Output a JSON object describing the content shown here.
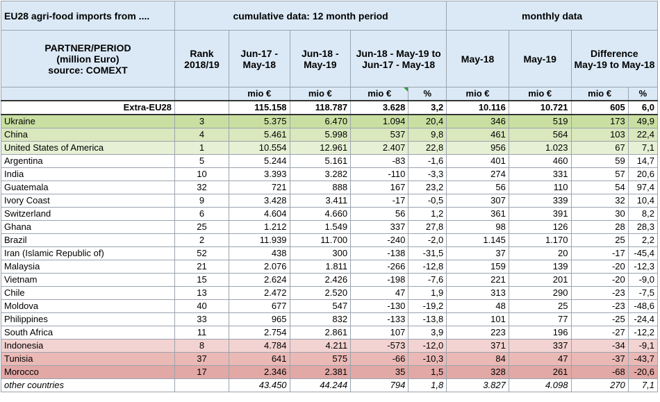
{
  "header": {
    "title": "EU28 agri-food imports from ....",
    "cumulative": "cumulative data: 12 month period",
    "monthly": "monthly data",
    "partner_line1": "PARTNER/PERIOD",
    "partner_line2": "(million Euro)",
    "partner_line3": "source: COMEXT",
    "rank_line1": "Rank",
    "rank_line2": "2018/19",
    "c1_line1": "Jun-17 -",
    "c1_line2": "May-18",
    "c2_line1": "Jun-18 -",
    "c2_line2": "May-19",
    "c3_line1": "Jun-18 - May-19 to",
    "c3_line2": "Jun-17 - May-18",
    "m1": "May-18",
    "m2": "May-19",
    "diff_line1": "Difference",
    "diff_line2": "May-19 to May-18"
  },
  "units": {
    "u1": "mio €",
    "u2": "mio €",
    "u3": "mio €",
    "u4": "%",
    "u5": "mio €",
    "u6": "mio €",
    "u7": "mio €",
    "u8": "%"
  },
  "extra": {
    "name": "Extra-EU28",
    "v1": "115.158",
    "v2": "118.787",
    "v3": "3.628",
    "v4": "3,2",
    "v5": "10.116",
    "v6": "10.721",
    "v7": "605",
    "v8": "6,0"
  },
  "rows": [
    {
      "name": "Ukraine",
      "rank": "3",
      "v1": "5.375",
      "v2": "6.470",
      "v3": "1.094",
      "v4": "20,4",
      "v5": "346",
      "v6": "519",
      "v7": "173",
      "v8": "49,9"
    },
    {
      "name": "China",
      "rank": "4",
      "v1": "5.461",
      "v2": "5.998",
      "v3": "537",
      "v4": "9,8",
      "v5": "461",
      "v6": "564",
      "v7": "103",
      "v8": "22,4"
    },
    {
      "name": "United States of America",
      "rank": "1",
      "v1": "10.554",
      "v2": "12.961",
      "v3": "2.407",
      "v4": "22,8",
      "v5": "956",
      "v6": "1.023",
      "v7": "67",
      "v8": "7,1"
    },
    {
      "name": "Argentina",
      "rank": "5",
      "v1": "5.244",
      "v2": "5.161",
      "v3": "-83",
      "v4": "-1,6",
      "v5": "401",
      "v6": "460",
      "v7": "59",
      "v8": "14,7"
    },
    {
      "name": "India",
      "rank": "10",
      "v1": "3.393",
      "v2": "3.282",
      "v3": "-110",
      "v4": "-3,3",
      "v5": "274",
      "v6": "331",
      "v7": "57",
      "v8": "20,6"
    },
    {
      "name": "Guatemala",
      "rank": "32",
      "v1": "721",
      "v2": "888",
      "v3": "167",
      "v4": "23,2",
      "v5": "56",
      "v6": "110",
      "v7": "54",
      "v8": "97,4"
    },
    {
      "name": "Ivory Coast",
      "rank": "9",
      "v1": "3.428",
      "v2": "3.411",
      "v3": "-17",
      "v4": "-0,5",
      "v5": "307",
      "v6": "339",
      "v7": "32",
      "v8": "10,4"
    },
    {
      "name": "Switzerland",
      "rank": "6",
      "v1": "4.604",
      "v2": "4.660",
      "v3": "56",
      "v4": "1,2",
      "v5": "361",
      "v6": "391",
      "v7": "30",
      "v8": "8,2"
    },
    {
      "name": "Ghana",
      "rank": "25",
      "v1": "1.212",
      "v2": "1.549",
      "v3": "337",
      "v4": "27,8",
      "v5": "98",
      "v6": "126",
      "v7": "28",
      "v8": "28,3"
    },
    {
      "name": "Brazil",
      "rank": "2",
      "v1": "11.939",
      "v2": "11.700",
      "v3": "-240",
      "v4": "-2,0",
      "v5": "1.145",
      "v6": "1.170",
      "v7": "25",
      "v8": "2,2"
    },
    {
      "name": "Iran (Islamic Republic of)",
      "rank": "52",
      "v1": "438",
      "v2": "300",
      "v3": "-138",
      "v4": "-31,5",
      "v5": "37",
      "v6": "20",
      "v7": "-17",
      "v8": "-45,4"
    },
    {
      "name": "Malaysia",
      "rank": "21",
      "v1": "2.076",
      "v2": "1.811",
      "v3": "-266",
      "v4": "-12,8",
      "v5": "159",
      "v6": "139",
      "v7": "-20",
      "v8": "-12,3"
    },
    {
      "name": "Vietnam",
      "rank": "15",
      "v1": "2.624",
      "v2": "2.426",
      "v3": "-198",
      "v4": "-7,6",
      "v5": "221",
      "v6": "201",
      "v7": "-20",
      "v8": "-9,0"
    },
    {
      "name": "Chile",
      "rank": "13",
      "v1": "2.472",
      "v2": "2.520",
      "v3": "47",
      "v4": "1,9",
      "v5": "313",
      "v6": "290",
      "v7": "-23",
      "v8": "-7,5"
    },
    {
      "name": "Moldova",
      "rank": "40",
      "v1": "677",
      "v2": "547",
      "v3": "-130",
      "v4": "-19,2",
      "v5": "48",
      "v6": "25",
      "v7": "-23",
      "v8": "-48,6"
    },
    {
      "name": "Philippines",
      "rank": "33",
      "v1": "965",
      "v2": "832",
      "v3": "-133",
      "v4": "-13,8",
      "v5": "101",
      "v6": "77",
      "v7": "-25",
      "v8": "-24,4"
    },
    {
      "name": "South Africa",
      "rank": "11",
      "v1": "2.754",
      "v2": "2.861",
      "v3": "107",
      "v4": "3,9",
      "v5": "223",
      "v6": "196",
      "v7": "-27",
      "v8": "-12,2"
    },
    {
      "name": "Indonesia",
      "rank": "8",
      "v1": "4.784",
      "v2": "4.211",
      "v3": "-573",
      "v4": "-12,0",
      "v5": "371",
      "v6": "337",
      "v7": "-34",
      "v8": "-9,1"
    },
    {
      "name": "Tunisia",
      "rank": "37",
      "v1": "641",
      "v2": "575",
      "v3": "-66",
      "v4": "-10,3",
      "v5": "84",
      "v6": "47",
      "v7": "-37",
      "v8": "-43,7"
    },
    {
      "name": "Morocco",
      "rank": "17",
      "v1": "2.346",
      "v2": "2.381",
      "v3": "35",
      "v4": "1,5",
      "v5": "328",
      "v6": "261",
      "v7": "-68",
      "v8": "-20,6"
    }
  ],
  "other": {
    "name": "other countries",
    "v1": "43.450",
    "v2": "44.244",
    "v3": "794",
    "v4": "1,8",
    "v5": "3.827",
    "v6": "4.098",
    "v7": "270",
    "v8": "7,1"
  },
  "row_highlight_colors": {
    "green_strong": "#c9dfa2",
    "green_mid": "#d9e8bd",
    "green_light": "#e6f0d4",
    "red_light": "#f2d3d1",
    "red_mid": "#eab9b6",
    "red_strong": "#e2a8a5",
    "header_blue": "#dbe9f6"
  }
}
